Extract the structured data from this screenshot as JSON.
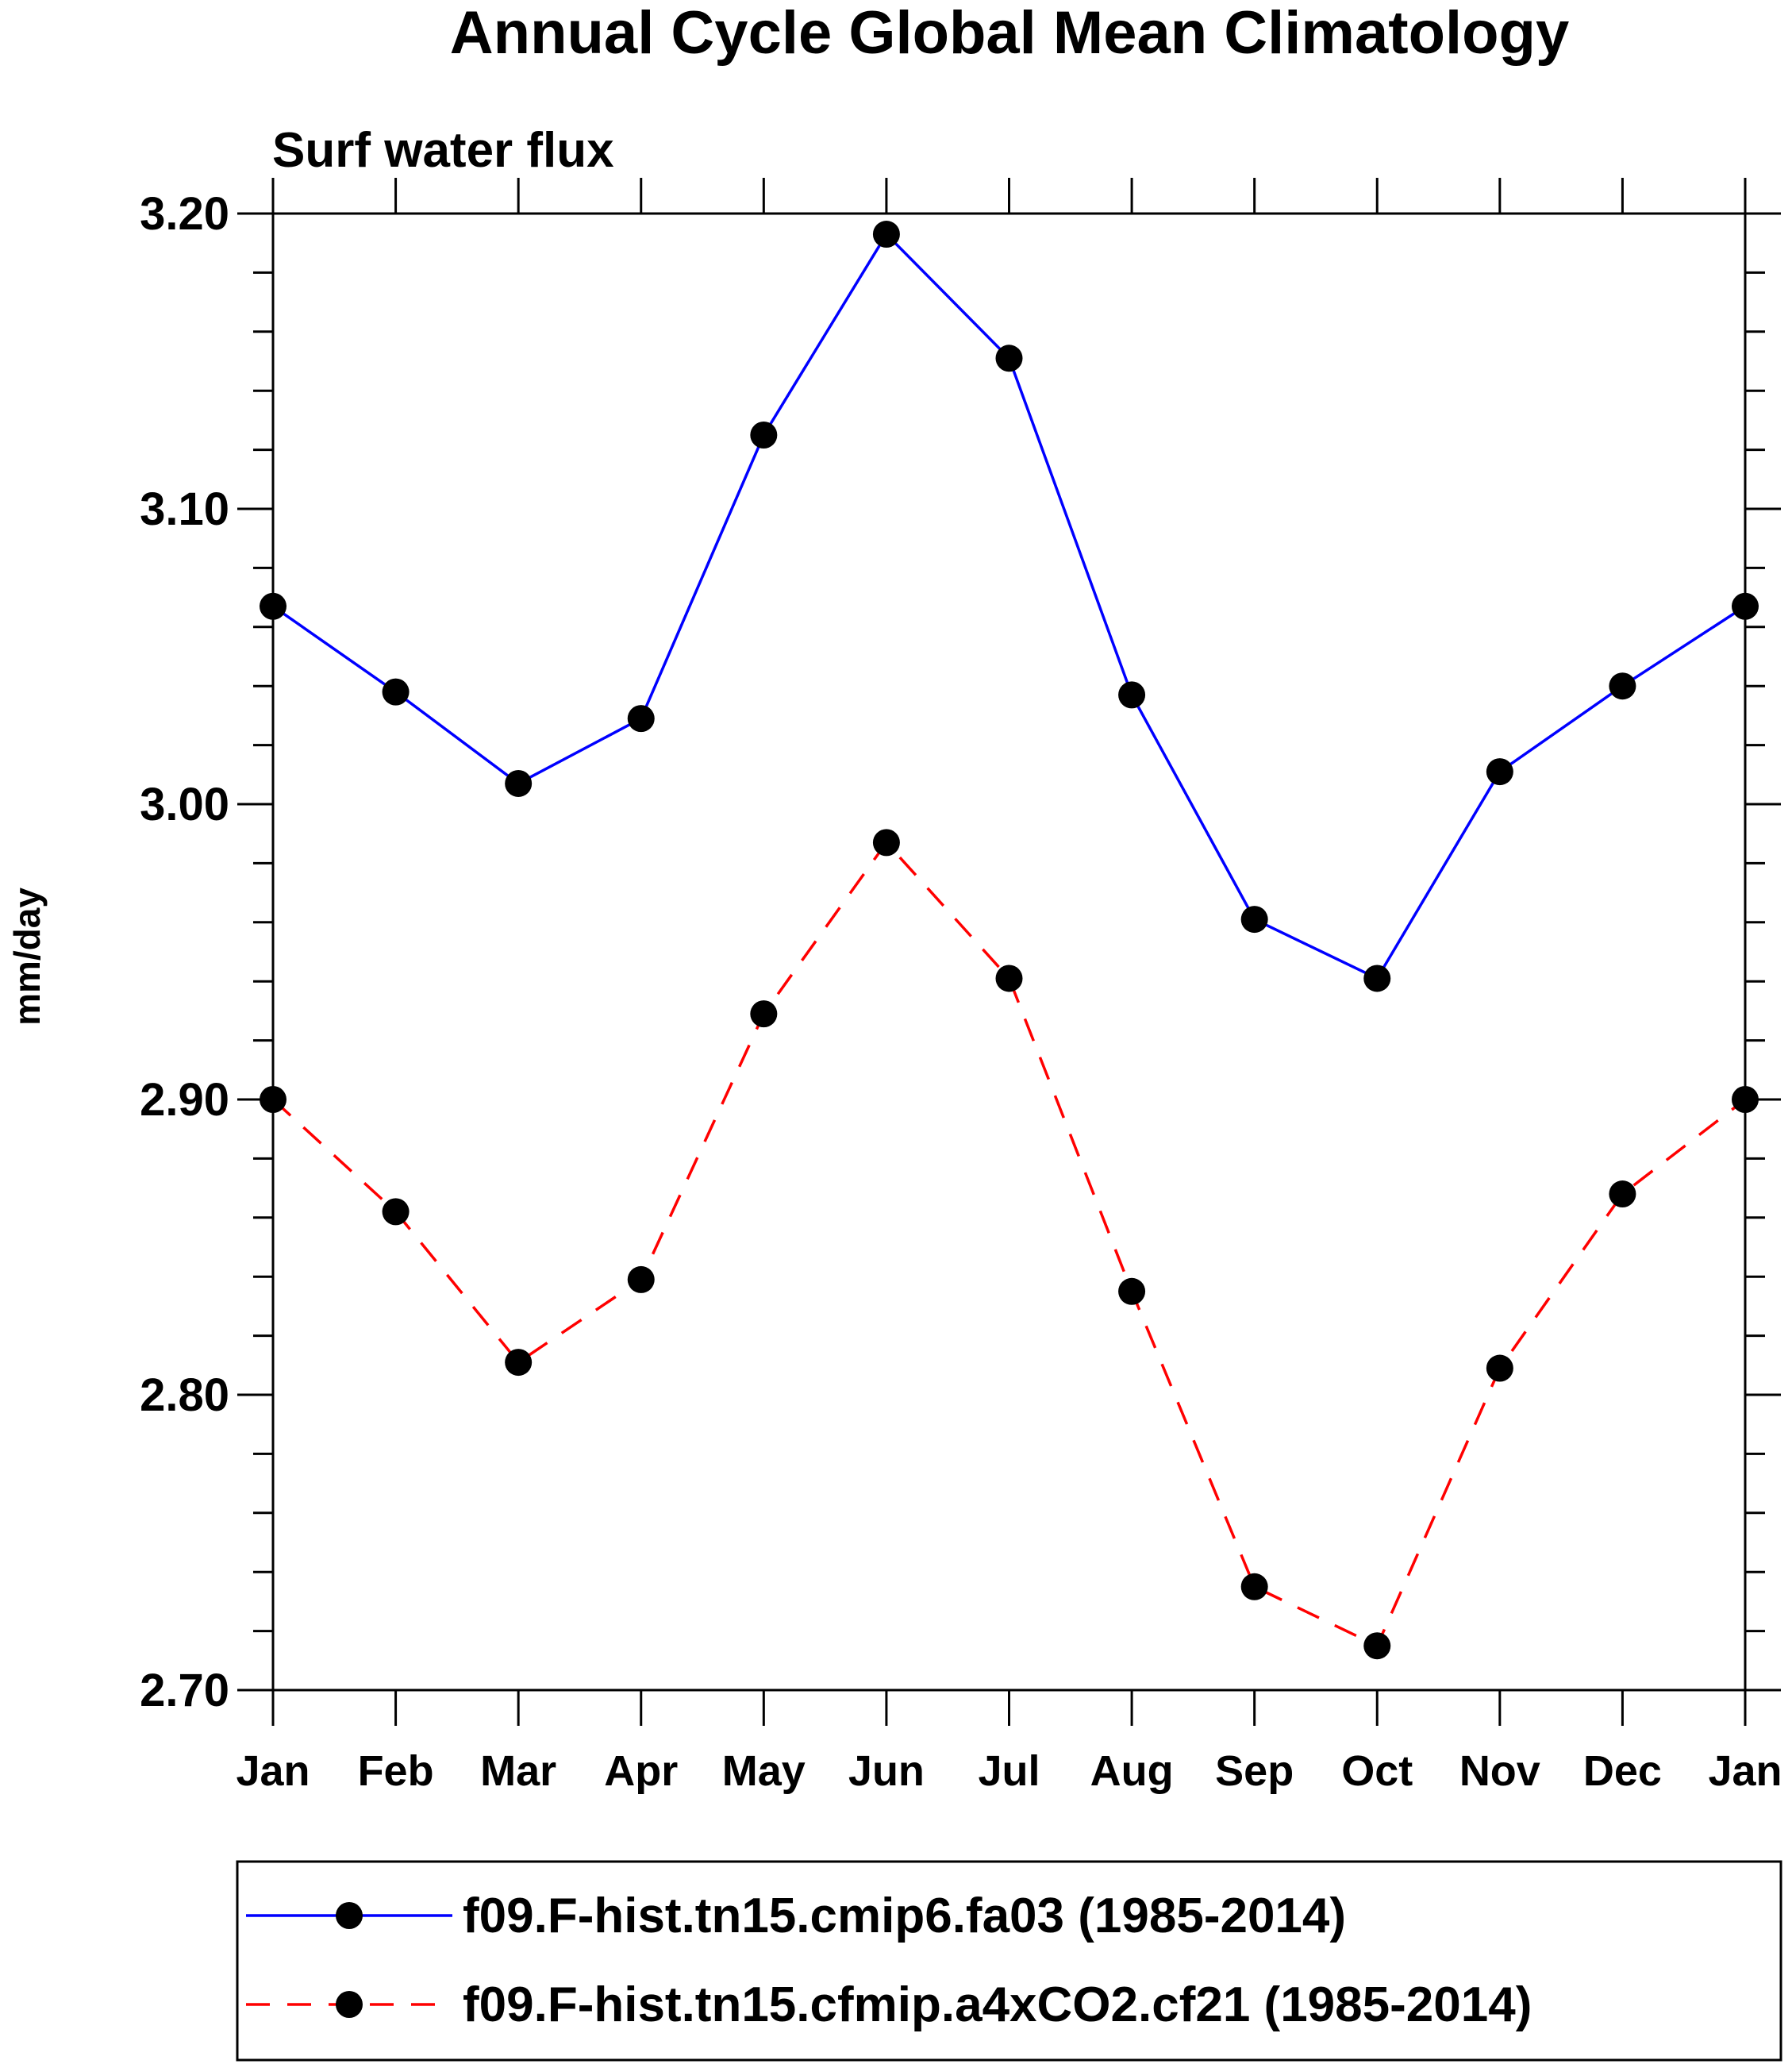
{
  "chart_data": {
    "type": "line",
    "title": "Annual Cycle Global Mean Climatology",
    "subtitle": "Surf water flux",
    "ylabel": "mm/day",
    "xlabel": "",
    "categories": [
      "Jan",
      "Feb",
      "Mar",
      "Apr",
      "May",
      "Jun",
      "Jul",
      "Aug",
      "Sep",
      "Oct",
      "Nov",
      "Dec",
      "Jan"
    ],
    "ylim": [
      2.7,
      3.2
    ],
    "yticks": [
      "2.70",
      "2.80",
      "2.90",
      "3.00",
      "3.10",
      "3.20"
    ],
    "grid": false,
    "legend_position": "bottom",
    "series": [
      {
        "name": "f09.F-hist.tn15.cmip6.fa03 (1985-2014)",
        "color": "#0000ff",
        "line_style": "solid",
        "marker": "filled-circle",
        "marker_color": "#000000",
        "values": [
          3.067,
          3.038,
          3.007,
          3.029,
          3.125,
          3.193,
          3.151,
          3.037,
          2.961,
          2.941,
          3.011,
          3.04,
          3.067
        ]
      },
      {
        "name": "f09.F-hist.tn15.cfmip.a4xCO2.cf21 (1985-2014)",
        "color": "#ff0000",
        "line_style": "dashed",
        "marker": "filled-circle",
        "marker_color": "#000000",
        "values": [
          2.9,
          2.862,
          2.811,
          2.839,
          2.929,
          2.987,
          2.941,
          2.835,
          2.735,
          2.715,
          2.809,
          2.868,
          2.9
        ]
      }
    ]
  }
}
